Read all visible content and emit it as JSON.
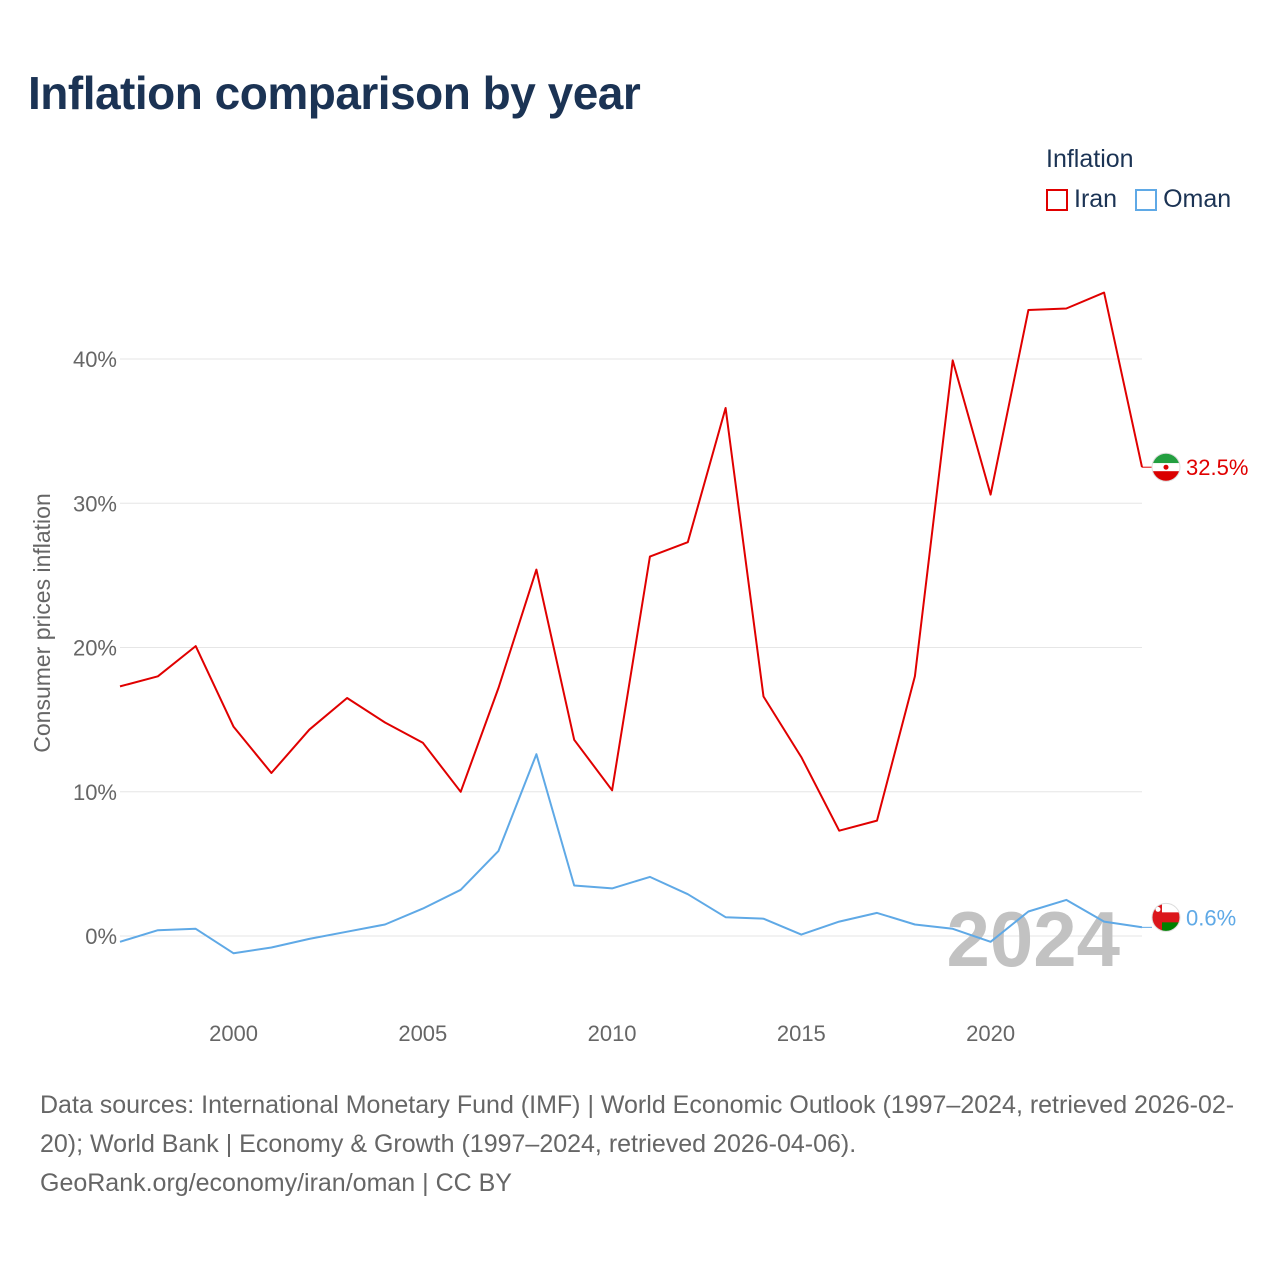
{
  "chart_data": {
    "type": "line",
    "title": "Inflation comparison by year",
    "ylabel": "Consumer prices inflation",
    "xlabel": "",
    "xlim": [
      1997,
      2024
    ],
    "ylim": [
      -5,
      47
    ],
    "x_ticks": [
      2000,
      2005,
      2010,
      2015,
      2020
    ],
    "y_ticks": [
      0,
      10,
      20,
      30,
      40
    ],
    "y_tick_labels": [
      "0%",
      "10%",
      "20%",
      "30%",
      "40%"
    ],
    "legend_title": "Inflation",
    "legend_position": "top-right",
    "watermark_year": "2024",
    "x": [
      1997,
      1998,
      1999,
      2000,
      2001,
      2002,
      2003,
      2004,
      2005,
      2006,
      2007,
      2008,
      2009,
      2010,
      2011,
      2012,
      2013,
      2014,
      2015,
      2016,
      2017,
      2018,
      2019,
      2020,
      2021,
      2022,
      2023,
      2024
    ],
    "series": [
      {
        "name": "Iran",
        "color": "#e00000",
        "end_label": "32.5%",
        "values": [
          17.3,
          18.0,
          20.1,
          14.5,
          11.3,
          14.3,
          16.5,
          14.8,
          13.4,
          10.0,
          17.2,
          25.4,
          13.6,
          10.1,
          26.3,
          27.3,
          36.6,
          16.6,
          12.4,
          7.3,
          8.0,
          18.0,
          39.9,
          30.6,
          43.4,
          43.5,
          44.6,
          32.5
        ]
      },
      {
        "name": "Oman",
        "color": "#5fa9e6",
        "end_label": "0.6%",
        "values": [
          -0.4,
          0.4,
          0.5,
          -1.2,
          -0.8,
          -0.2,
          0.3,
          0.8,
          1.9,
          3.2,
          5.9,
          12.6,
          3.5,
          3.3,
          4.1,
          2.9,
          1.3,
          1.2,
          0.1,
          1.0,
          1.6,
          0.8,
          0.5,
          -0.4,
          1.7,
          2.5,
          1.0,
          0.6
        ]
      }
    ]
  },
  "footer": {
    "sources": "Data sources: International Monetary Fund (IMF) | World Economic Outlook (1997–2024, retrieved 2026-02-20); World Bank | Economy & Growth (1997–2024, retrieved 2026-04-06).",
    "credit": "GeoRank.org/economy/iran/oman | CC BY"
  }
}
